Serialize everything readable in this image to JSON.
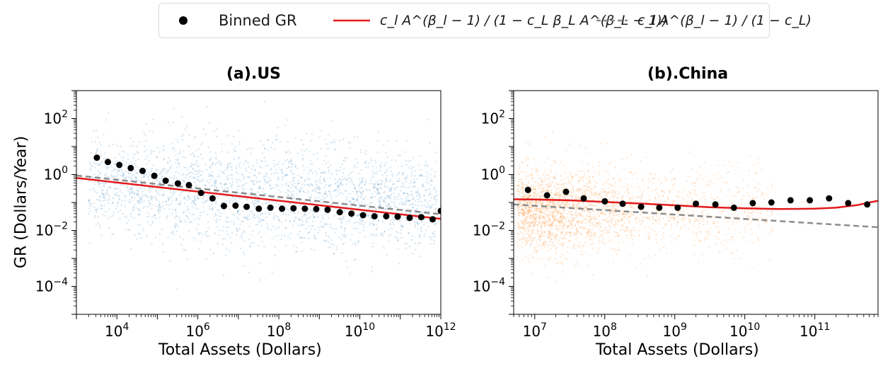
{
  "legend": {
    "binned": "Binned GR",
    "red_line": "c_l A^(β_l − 1) / (1 − c_L β_L A^(β_L − 1))",
    "gray_line": "c_l A^(β_l − 1) / (1 − c_L)"
  },
  "colors": {
    "us_scatter": "#1f77b4",
    "china_scatter": "#ff7f0e",
    "red_line": "#e31a1c",
    "gray_line": "#8c8c8c",
    "binned": "#000000"
  },
  "chart_data": [
    {
      "type": "scatter",
      "title": "(a).US",
      "xlabel": "Total Assets (Dollars)",
      "ylabel": "GR (Dollars/Year)",
      "xscale": "log",
      "yscale": "log",
      "xlim": [
        1000,
        1000000000000
      ],
      "ylim": [
        1e-05,
        1000
      ],
      "xtick_labels": [
        "10^4",
        "10^6",
        "10^8",
        "10^10",
        "10^12"
      ],
      "ytick_labels": [
        "10^-4",
        "10^-2",
        "10^0",
        "10^2"
      ],
      "series": [
        {
          "name": "Binned GR",
          "kind": "points",
          "x": [
            3200.0,
            6000.0,
            11500.0,
            22000.0,
            43000.0,
            84000.0,
            160000.0,
            320000.0,
            600000.0,
            1200000.0,
            2300000.0,
            4400000.0,
            8500000.0,
            16000000.0,
            32000000.0,
            62000000.0,
            120000000.0,
            230000000.0,
            440000000.0,
            840000000.0,
            1600000000.0,
            3200000000.0,
            6200000000.0,
            12000000000.0,
            23000000000.0,
            45000000000.0,
            86000000000.0,
            170000000000.0,
            330000000000.0,
            630000000000.0,
            1000000000000.0
          ],
          "y": [
            4.0,
            2.8,
            2.2,
            1.7,
            1.35,
            0.9,
            0.6,
            0.48,
            0.42,
            0.22,
            0.14,
            0.075,
            0.077,
            0.07,
            0.06,
            0.065,
            0.06,
            0.062,
            0.06,
            0.058,
            0.055,
            0.045,
            0.04,
            0.035,
            0.032,
            0.032,
            0.031,
            0.028,
            0.03,
            0.025,
            0.05
          ]
        },
        {
          "name": "c_l A^(β_l − 1) / (1 − c_L β_L A^(β_L − 1))",
          "kind": "line",
          "x": [
            1000,
            1000000000000
          ],
          "y": [
            0.75,
            0.026
          ]
        },
        {
          "name": "c_l A^(β_l − 1) / (1 − c_L)",
          "kind": "dashed",
          "x": [
            1000,
            1000000000000
          ],
          "y": [
            0.92,
            0.038
          ]
        }
      ]
    },
    {
      "type": "scatter",
      "title": "(b).China",
      "xlabel": "Total Assets (Dollars)",
      "ylabel": "",
      "xscale": "log",
      "yscale": "log",
      "xlim": [
        5000000,
        800000000000
      ],
      "ylim": [
        1e-05,
        1000
      ],
      "xtick_labels": [
        "10^7",
        "10^8",
        "10^9",
        "10^10",
        "10^11"
      ],
      "ytick_labels": [
        "10^-4",
        "10^-2",
        "10^0",
        "10^2"
      ],
      "series": [
        {
          "name": "Binned GR",
          "kind": "points",
          "x": [
            8000000.0,
            15000000.0,
            28000000.0,
            50000000.0,
            100000000.0,
            180000000.0,
            330000000.0,
            600000000.0,
            1100000000.0,
            2000000000.0,
            3800000000.0,
            7000000000.0,
            13000000000.0,
            24000000000.0,
            45000000000.0,
            85000000000.0,
            160000000000.0,
            300000000000.0,
            560000000000.0
          ],
          "y": [
            0.28,
            0.18,
            0.24,
            0.14,
            0.11,
            0.09,
            0.07,
            0.065,
            0.065,
            0.09,
            0.085,
            0.065,
            0.095,
            0.1,
            0.12,
            0.12,
            0.14,
            0.095,
            0.085
          ]
        },
        {
          "name": "c_l A^(β_l − 1) / (1 − c_L β_L A^(β_L − 1))",
          "kind": "line",
          "x": [
            5000000.0,
            10000000.0,
            30000000.0,
            100000000.0,
            300000000.0,
            1000000000.0,
            3000000000.0,
            10000000000.0,
            30000000000.0,
            100000000000.0,
            200000000000.0,
            400000000000.0,
            600000000000.0,
            800000000000.0
          ],
          "y": [
            0.13,
            0.128,
            0.12,
            0.105,
            0.092,
            0.079,
            0.068,
            0.062,
            0.058,
            0.06,
            0.065,
            0.08,
            0.1,
            0.115
          ]
        },
        {
          "name": "c_l A^(β_l − 1) / (1 − c_L)",
          "kind": "dashed",
          "x": [
            5000000,
            800000000000
          ],
          "y": [
            0.085,
            0.013
          ]
        }
      ]
    }
  ]
}
